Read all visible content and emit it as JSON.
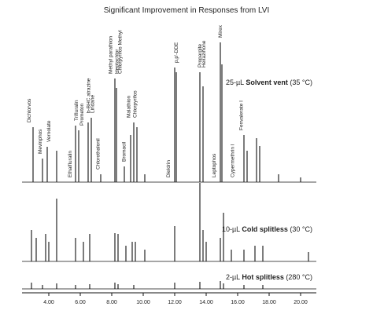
{
  "chart_data": {
    "type": "chromatogram",
    "title": "Significant Improvement in Responses from LVI",
    "xlim": [
      2.3,
      21.0
    ],
    "xticks": [
      {
        "value": 4,
        "label": "4.00"
      },
      {
        "value": 6,
        "label": "6.00"
      },
      {
        "value": 8,
        "label": "8.00"
      },
      {
        "value": 10,
        "label": "10.00"
      },
      {
        "value": 12,
        "label": "12.00"
      },
      {
        "value": 14,
        "label": "14.00"
      },
      {
        "value": 16,
        "label": "16.00"
      },
      {
        "value": 18,
        "label": "18.00"
      },
      {
        "value": 20,
        "label": "20.00"
      }
    ],
    "series": [
      {
        "label_prefix": "25-µL",
        "name": "Solvent vent",
        "label_suffix": "(35 °C)",
        "color": "#111",
        "x": [
          3.0,
          3.6,
          3.9,
          4.5,
          5.7,
          5.9,
          6.5,
          6.7,
          7.3,
          8.2,
          8.3,
          8.8,
          9.2,
          9.4,
          9.6,
          10.1,
          12.0,
          12.1,
          13.6,
          13.8,
          14.9,
          15.0,
          16.4,
          16.6,
          17.2,
          17.4,
          18.6,
          20.0
        ],
        "values": [
          70,
          30,
          45,
          40,
          72,
          66,
          76,
          82,
          10,
          132,
          120,
          20,
          60,
          76,
          70,
          10,
          146,
          140,
          140,
          122,
          178,
          150,
          60,
          40,
          56,
          46,
          10,
          6
        ]
      },
      {
        "label_prefix": "10-µL",
        "name": "Cold splitless",
        "label_suffix": "(30 °C)",
        "color": "#111",
        "x": [
          2.9,
          3.2,
          3.8,
          4.0,
          4.5,
          5.7,
          6.2,
          6.6,
          8.2,
          8.4,
          8.9,
          9.3,
          9.5,
          10.1,
          12.0,
          13.6,
          13.8,
          14.0,
          14.9,
          15.1,
          15.6,
          16.4,
          17.1,
          17.6,
          20.5
        ],
        "values": [
          40,
          30,
          35,
          25,
          80,
          30,
          25,
          35,
          36,
          35,
          20,
          25,
          25,
          15,
          45,
          100,
          40,
          25,
          30,
          62,
          15,
          15,
          20,
          20,
          12
        ]
      },
      {
        "label_prefix": "2-µL",
        "name": "Hot splitless",
        "label_suffix": "(280 °C)",
        "color": "#111",
        "x": [
          2.9,
          3.6,
          4.5,
          5.7,
          6.6,
          8.2,
          8.4,
          9.4,
          12.0,
          13.6,
          14.9,
          15.1,
          16.4,
          17.6
        ],
        "values": [
          8,
          5,
          7,
          5,
          6,
          8,
          6,
          5,
          8,
          9,
          10,
          7,
          5,
          5
        ]
      }
    ],
    "annotations": [
      {
        "text": "Dichlorvos",
        "x": 2.75
      },
      {
        "text": "Mevinphos",
        "x": 3.45
      },
      {
        "text": "Vernolate",
        "x": 4.0
      },
      {
        "text": "Ethalfluralin",
        "x": 5.34
      },
      {
        "text": "Trifluralin",
        "x": 5.74
      },
      {
        "text": "Prometon",
        "x": 6.09
      },
      {
        "text": "b-BHC atrazine",
        "x": 6.53
      },
      {
        "text": "Lindane",
        "x": 6.78
      },
      {
        "text": "Chlorothalonil",
        "x": 7.13
      },
      {
        "text": "Methyl parathion",
        "x": 7.93
      },
      {
        "text": "Heptachlor",
        "x": 8.32
      },
      {
        "text": "Chlorpyrifos Methyl",
        "x": 8.52
      },
      {
        "text": "Bromacil",
        "x": 8.77
      },
      {
        "text": "Malathion",
        "x": 9.07
      },
      {
        "text": "Chlorpyrifos",
        "x": 9.47
      },
      {
        "text": "Dieldrin",
        "x": 11.6
      },
      {
        "text": "p,p'-DDE",
        "x": 12.1
      },
      {
        "text": "Hexazinone",
        "x": 13.85
      },
      {
        "text": "Propargite",
        "x": 13.6
      },
      {
        "text": "Leptophos",
        "x": 14.5
      },
      {
        "text": "Mirex",
        "x": 14.9
      },
      {
        "text": "Cypermethrin I",
        "x": 15.68
      },
      {
        "text": "Fenvalerate I",
        "x": 16.23
      }
    ]
  }
}
